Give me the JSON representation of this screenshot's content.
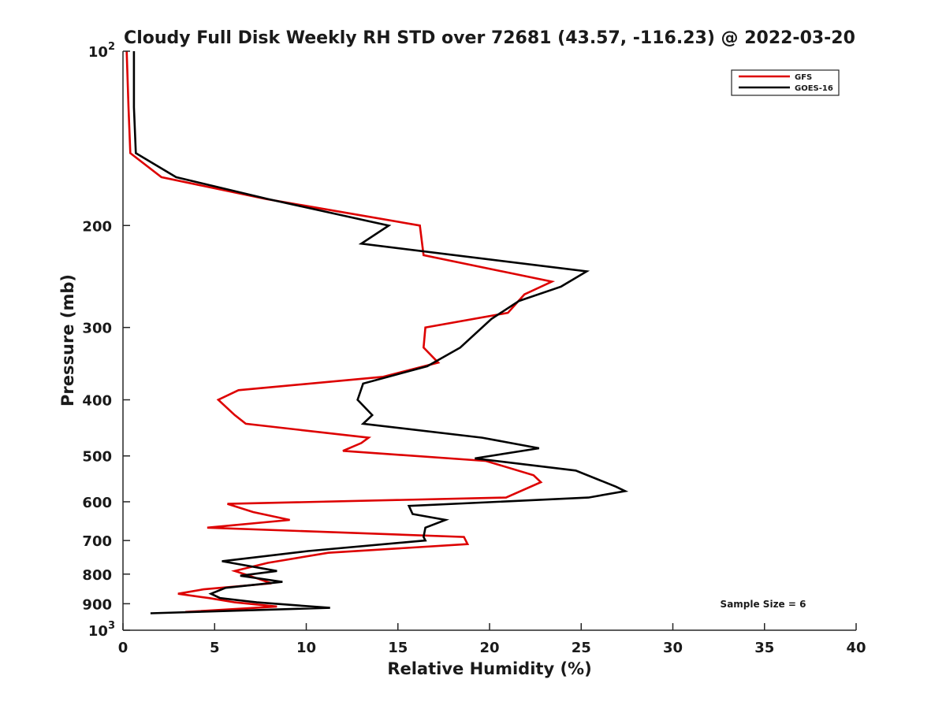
{
  "chart_data": {
    "type": "line",
    "title": "Cloudy Full Disk Weekly RH STD over 72681 (43.57, -116.23) @ 2022-03-20",
    "xlabel": "Relative Humidity (%)",
    "ylabel": "Pressure (mb)",
    "xlim": [
      0,
      40
    ],
    "ylim": [
      100,
      1000
    ],
    "y_scale": "log",
    "y_reversed": true,
    "grid": false,
    "x_ticks": [
      "0",
      "5",
      "10",
      "15",
      "20",
      "25",
      "30",
      "35",
      "40"
    ],
    "y_ticks": [
      {
        "value": 100,
        "base": "10",
        "exp": "2"
      },
      {
        "value": 200,
        "label": "200"
      },
      {
        "value": 300,
        "label": "300"
      },
      {
        "value": 400,
        "label": "400"
      },
      {
        "value": 500,
        "label": "500"
      },
      {
        "value": 600,
        "label": "600"
      },
      {
        "value": 700,
        "label": "700"
      },
      {
        "value": 800,
        "label": "800"
      },
      {
        "value": 900,
        "label": "900"
      },
      {
        "value": 1000,
        "base": "10",
        "exp": "3"
      }
    ],
    "legend_position": "top-right",
    "annotation": "Sample Size = 6",
    "series": [
      {
        "name": "GFS",
        "color": "#dd0000",
        "points": [
          [
            0.2,
            100
          ],
          [
            0.3,
            125
          ],
          [
            0.4,
            150
          ],
          [
            2.1,
            165
          ],
          [
            7.8,
            180
          ],
          [
            16.2,
            200
          ],
          [
            16.4,
            225
          ],
          [
            23.4,
            250
          ],
          [
            21.9,
            263
          ],
          [
            21.0,
            283
          ],
          [
            16.5,
            300
          ],
          [
            16.4,
            325
          ],
          [
            17.2,
            345
          ],
          [
            14.2,
            365
          ],
          [
            6.3,
            385
          ],
          [
            5.2,
            400
          ],
          [
            6.1,
            425
          ],
          [
            6.7,
            440
          ],
          [
            13.4,
            465
          ],
          [
            13.0,
            475
          ],
          [
            12.0,
            490
          ],
          [
            19.8,
            510
          ],
          [
            22.4,
            540
          ],
          [
            22.8,
            555
          ],
          [
            20.9,
            590
          ],
          [
            5.7,
            605
          ],
          [
            7.1,
            625
          ],
          [
            9.1,
            645
          ],
          [
            4.6,
            665
          ],
          [
            18.6,
            690
          ],
          [
            18.8,
            710
          ],
          [
            11.2,
            735
          ],
          [
            7.9,
            765
          ],
          [
            6.1,
            790
          ],
          [
            6.9,
            805
          ],
          [
            8.1,
            830
          ],
          [
            4.4,
            850
          ],
          [
            3.0,
            865
          ],
          [
            4.7,
            880
          ],
          [
            6.1,
            895
          ],
          [
            8.4,
            910
          ],
          [
            3.4,
            930
          ]
        ]
      },
      {
        "name": "GOES-16",
        "color": "#000000",
        "points": [
          [
            0.6,
            100
          ],
          [
            0.6,
            125
          ],
          [
            0.7,
            150
          ],
          [
            2.9,
            165
          ],
          [
            7.9,
            180
          ],
          [
            14.5,
            200
          ],
          [
            13.0,
            215
          ],
          [
            25.3,
            240
          ],
          [
            23.9,
            255
          ],
          [
            21.6,
            270
          ],
          [
            20.1,
            290
          ],
          [
            18.4,
            325
          ],
          [
            16.6,
            350
          ],
          [
            13.1,
            375
          ],
          [
            12.8,
            400
          ],
          [
            13.6,
            425
          ],
          [
            13.1,
            440
          ],
          [
            19.6,
            465
          ],
          [
            22.7,
            485
          ],
          [
            19.2,
            505
          ],
          [
            24.7,
            530
          ],
          [
            26.9,
            565
          ],
          [
            27.4,
            575
          ],
          [
            25.4,
            590
          ],
          [
            15.6,
            610
          ],
          [
            15.8,
            630
          ],
          [
            17.6,
            645
          ],
          [
            16.5,
            665
          ],
          [
            16.4,
            690
          ],
          [
            16.5,
            700
          ],
          [
            10.1,
            730
          ],
          [
            5.4,
            760
          ],
          [
            8.4,
            790
          ],
          [
            6.4,
            805
          ],
          [
            8.7,
            825
          ],
          [
            5.6,
            845
          ],
          [
            4.8,
            865
          ],
          [
            5.3,
            880
          ],
          [
            7.3,
            895
          ],
          [
            11.3,
            915
          ],
          [
            1.5,
            935
          ]
        ]
      }
    ]
  }
}
